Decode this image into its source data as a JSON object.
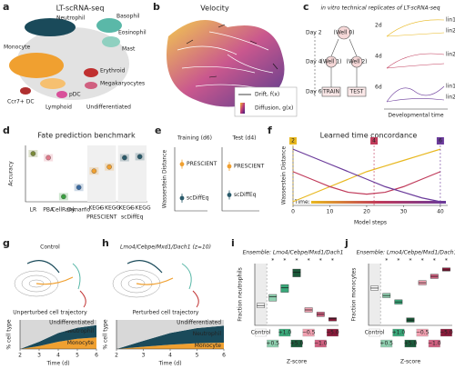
{
  "panels": {
    "a": {
      "letter": "a",
      "title": "LT-scRNA-seq",
      "cell_types": [
        "Neutrophil",
        "Basophil",
        "Eosinophil",
        "Mast",
        "Erythroid",
        "Megakaryocytes",
        "Monocyte",
        "Ccr7+ DC",
        "pDC",
        "Lymphoid",
        "Undifferentiated"
      ]
    },
    "b": {
      "letter": "b",
      "title": "Velocity",
      "legend": [
        "Drift, f(x)",
        "Diffusion, g(x)"
      ]
    },
    "c": {
      "letter": "c",
      "title": "in vitro technical replicates of LT-scRNA-seq",
      "days": [
        "Day 2",
        "Day 4",
        "Day 6"
      ],
      "wells": [
        "(Well 0)",
        "(Well 1)",
        "(Well 2)"
      ],
      "splits": [
        "TRAIN",
        "TEST"
      ],
      "times": [
        "2d",
        "4d",
        "6d"
      ],
      "lineages": [
        [
          "lin1",
          "lin2"
        ],
        [
          "lin2"
        ],
        [
          "lin1",
          "lin2"
        ]
      ],
      "x_label": "Developmental time"
    },
    "g": {
      "letter": "g",
      "title": "Control",
      "subtitle": "Unperturbed cell trajectory"
    },
    "h": {
      "letter": "h",
      "title": "Lmo4/Cebpe/Mxd1/Dach1 (z=10)",
      "subtitle": "Perturbed cell trajectory"
    }
  },
  "chart_data": [
    {
      "type": "dot",
      "letter": "d",
      "title": "Fate prediction benchmark",
      "y_label": "Accuracy",
      "categories": [
        "LR",
        "PBA",
        "CellRank",
        "Dynamo",
        "PRESCIENT",
        "scDiffEq"
      ],
      "values": [
        [
          0.57
        ],
        [
          0.53
        ],
        [
          0.15
        ],
        [
          0.24
        ],
        [
          0.4,
          0.44
        ],
        [
          0.53,
          0.54
        ]
      ],
      "sub_labels": [
        "– KEGG",
        "+ KEGG"
      ],
      "colors": [
        "#7a8a3a",
        "#e07a8a",
        "#3aa040",
        "#3a6aa0",
        "#f0a030",
        "#2a5a6a"
      ],
      "ylim": [
        0.1,
        0.65
      ]
    },
    {
      "type": "dot2",
      "letter": "e",
      "y_label": "Wasserstein Distance",
      "subplots": [
        {
          "title": "Training (d6)",
          "ylim": [
            12,
            21
          ],
          "series": [
            {
              "name": "PRESCIENT",
              "color": "#f0a030",
              "values": [
                18.6
              ]
            },
            {
              "name": "scDiffEq",
              "color": "#2a5a6a",
              "values": [
                13.8
              ]
            }
          ]
        },
        {
          "title": "Test (d4)",
          "ylim": [
            22,
            28
          ],
          "series": [
            {
              "name": "PRESCIENT",
              "color": "#f0a030",
              "values": [
                26.2
              ]
            },
            {
              "name": "scDiffEq",
              "color": "#2a5a6a",
              "values": [
                23.5
              ]
            }
          ]
        }
      ]
    },
    {
      "type": "line",
      "letter": "f",
      "title": "Learned time concordance",
      "x_label": "Model steps",
      "y_label": "Wasserstein Distance",
      "time_label": "Time:",
      "x": [
        0,
        5,
        10,
        15,
        20,
        25,
        30,
        35,
        40
      ],
      "xlim": [
        0,
        42
      ],
      "xticks": [
        0,
        10,
        20,
        30,
        40
      ],
      "ylim": [
        0,
        1.6
      ],
      "series": [
        {
          "name": "2",
          "color": "#e8b820",
          "step": 0,
          "values": [
            0.1,
            0.3,
            0.5,
            0.7,
            0.9,
            1.05,
            1.2,
            1.35,
            1.5
          ]
        },
        {
          "name": "4",
          "color": "#c03a5a",
          "step": 22,
          "values": [
            0.9,
            0.7,
            0.5,
            0.35,
            0.3,
            0.35,
            0.5,
            0.7,
            0.9
          ]
        },
        {
          "name": "6",
          "color": "#6a3a9a",
          "step": 40,
          "values": [
            1.5,
            1.3,
            1.1,
            0.9,
            0.7,
            0.5,
            0.35,
            0.2,
            0.1
          ]
        }
      ]
    },
    {
      "type": "area",
      "letter": "g",
      "x_label": "Time (d)",
      "y_label": "% cell type",
      "x": [
        2,
        3,
        4,
        5,
        6
      ],
      "xlim": [
        2,
        6
      ],
      "xticks": [
        2,
        3,
        4,
        5,
        6
      ],
      "ylim": [
        0,
        100
      ],
      "series": [
        {
          "name": "Monocyte",
          "color": "#f0a030",
          "values": [
            0,
            10,
            25,
            35,
            40
          ]
        },
        {
          "name": "Neutrophil",
          "color": "#1a4a5a",
          "values": [
            0,
            15,
            30,
            38,
            42
          ]
        },
        {
          "name": "Undifferentiated",
          "color": "#d8d8d8",
          "values": [
            100,
            75,
            45,
            27,
            18
          ]
        }
      ]
    },
    {
      "type": "area",
      "letter": "h",
      "x_label": "Time (d)",
      "y_label": "% cell type",
      "x": [
        2,
        3,
        4,
        5,
        6
      ],
      "xlim": [
        2,
        6
      ],
      "xticks": [
        2,
        3,
        4,
        5,
        6
      ],
      "ylim": [
        0,
        100
      ],
      "series": [
        {
          "name": "Monocyte",
          "color": "#f0a030",
          "values": [
            0,
            8,
            15,
            20,
            22
          ]
        },
        {
          "name": "Neutrophil",
          "color": "#1a4a5a",
          "values": [
            0,
            20,
            40,
            52,
            58
          ]
        },
        {
          "name": "Undifferentiated",
          "color": "#d8d8d8",
          "values": [
            100,
            72,
            45,
            28,
            20
          ]
        }
      ]
    },
    {
      "type": "box",
      "letter": "i",
      "title": "Ensemble: Lmo4/Cebpe/Mxd1/Dach1",
      "y_label": "Fraction neutrophils",
      "x_label": "Z-score",
      "categories": [
        "Control",
        "+0.5",
        "+1.0",
        "+5.0",
        "−0.5",
        "−1.0",
        "−5.0"
      ],
      "medians": [
        0.14,
        0.18,
        0.22,
        0.29,
        0.12,
        0.1,
        0.08
      ],
      "q1": [
        0.13,
        0.16,
        0.2,
        0.27,
        0.11,
        0.09,
        0.07
      ],
      "q3": [
        0.15,
        0.19,
        0.235,
        0.305,
        0.13,
        0.11,
        0.085
      ],
      "colors": [
        "#ffffff",
        "#8fd0b0",
        "#3aa87a",
        "#1a5a3a",
        "#f0a0b0",
        "#d06080",
        "#8a1a3a"
      ],
      "significance": [
        null,
        "*",
        "*",
        "*",
        "*",
        "*",
        "*"
      ],
      "ylim": [
        0.05,
        0.33
      ]
    },
    {
      "type": "box",
      "letter": "j",
      "title": "Ensemble: Lmo4/Cebpe/Mxd1/Dach1",
      "y_label": "Fraction monocytes",
      "x_label": "Z-score",
      "categories": [
        "Control",
        "+0.5",
        "+1.0",
        "+5.0",
        "−0.5",
        "−1.0",
        "−5.0"
      ],
      "medians": [
        0.55,
        0.48,
        0.42,
        0.25,
        0.6,
        0.66,
        0.72
      ],
      "q1": [
        0.53,
        0.46,
        0.4,
        0.23,
        0.58,
        0.64,
        0.71
      ],
      "q3": [
        0.57,
        0.5,
        0.44,
        0.27,
        0.62,
        0.68,
        0.74
      ],
      "colors": [
        "#ffffff",
        "#8fd0b0",
        "#3aa87a",
        "#1a5a3a",
        "#f0a0b0",
        "#d06080",
        "#8a1a3a"
      ],
      "significance": [
        null,
        "*",
        "*",
        "*",
        "*",
        "*",
        "*"
      ],
      "ylim": [
        0.2,
        0.78
      ]
    }
  ]
}
